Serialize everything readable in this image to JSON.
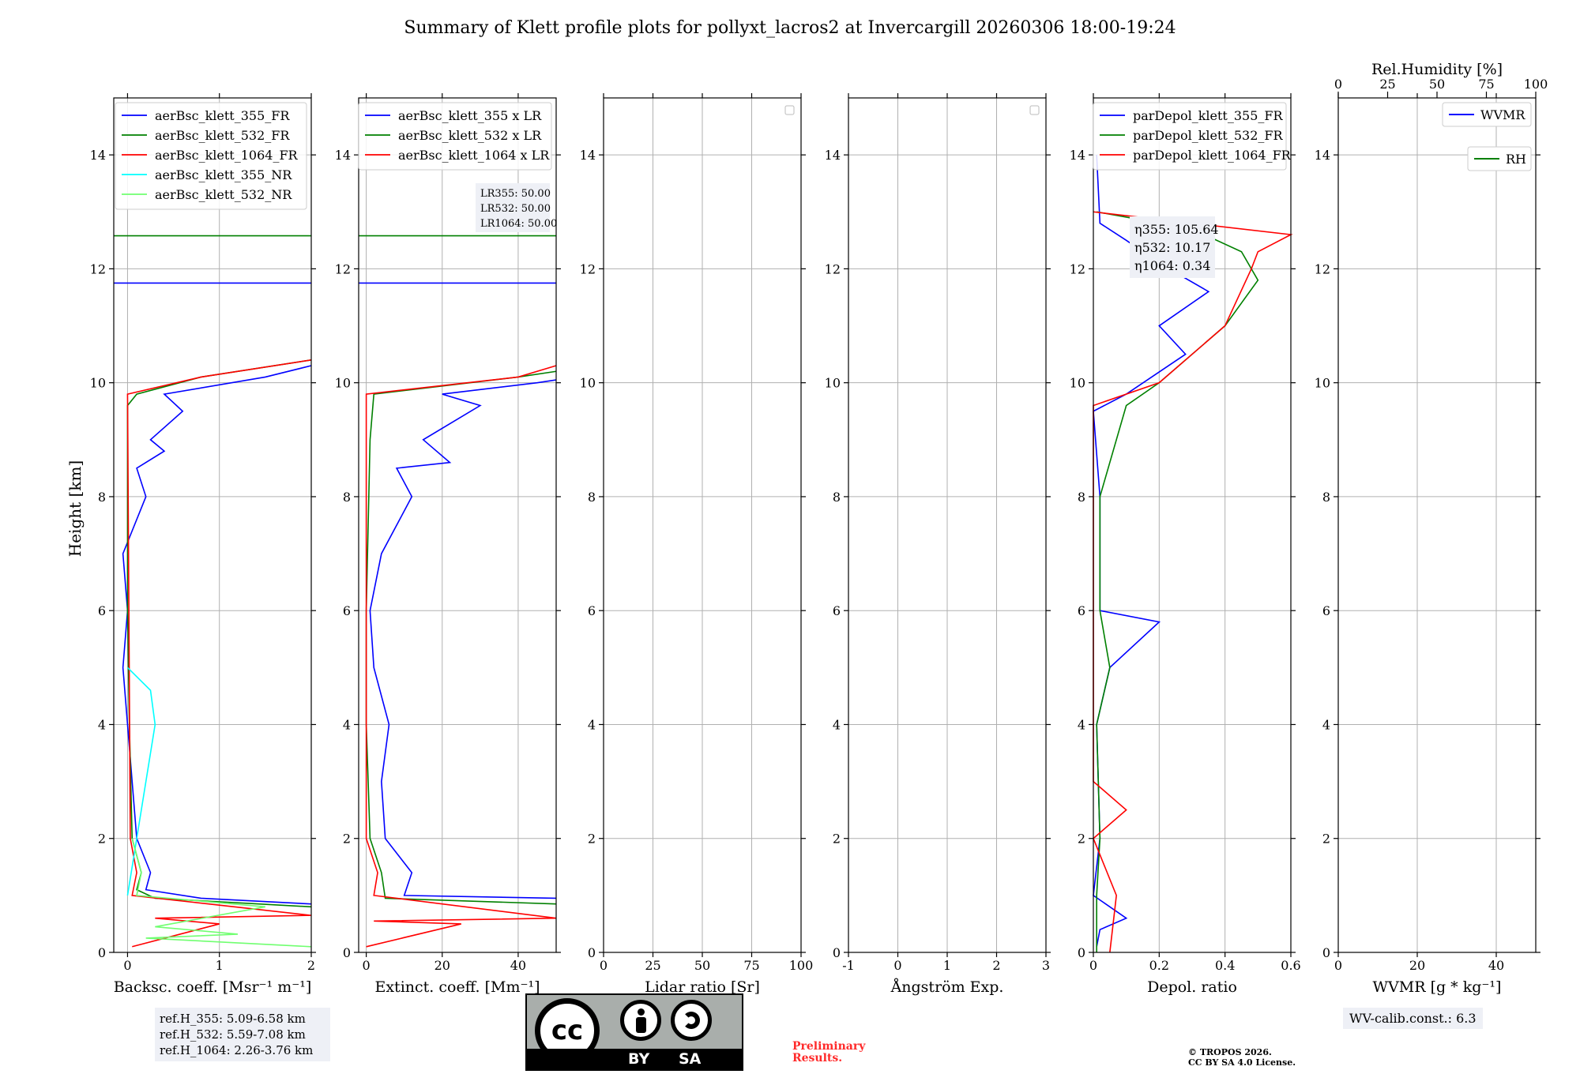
{
  "title": "Summary of Klett profile plots for pollyxt_lacros2 at Invercargill 20260306 18:00-19:24",
  "colors": {
    "blue": "#0000ff",
    "green": "#008000",
    "red": "#ff0000",
    "cyan": "#00ffff",
    "lightgreen": "#70ff70",
    "grid": "#b0b0b0",
    "boxbg": "#eef0f6"
  },
  "chart_data": [
    {
      "type": "line",
      "ylabel": "Height [km]",
      "xlabel": "Backsc. coeff. [Msr⁻¹ m⁻¹]",
      "xlim": [
        -0.15,
        2
      ],
      "ylim": [
        0,
        15
      ],
      "xticks": [
        0,
        1,
        2
      ],
      "yticks": [
        0,
        2,
        4,
        6,
        8,
        10,
        12,
        14
      ],
      "legend": {
        "position": "top-right",
        "entries": [
          "aerBsc_klett_355_FR",
          "aerBsc_klett_532_FR",
          "aerBsc_klett_1064_FR",
          "aerBsc_klett_355_NR",
          "aerBsc_klett_532_NR"
        ]
      },
      "series": [
        {
          "name": "aerBsc_klett_355_FR",
          "color": "blue",
          "points": [
            [
              2,
              0.85
            ],
            [
              0.8,
              0.95
            ],
            [
              0.2,
              1.1
            ],
            [
              0.25,
              1.4
            ],
            [
              0.1,
              2.0
            ],
            [
              0.05,
              3.0
            ],
            [
              0.0,
              4.0
            ],
            [
              -0.05,
              5.0
            ],
            [
              0.0,
              6.0
            ],
            [
              -0.05,
              7.0
            ],
            [
              0.2,
              8.0
            ],
            [
              0.1,
              8.5
            ],
            [
              0.4,
              8.8
            ],
            [
              0.25,
              9.0
            ],
            [
              0.6,
              9.5
            ],
            [
              0.4,
              9.8
            ],
            [
              1.5,
              10.1
            ],
            [
              2,
              10.3
            ]
          ]
        },
        {
          "name": "aerBsc_klett_532_FR",
          "color": "green",
          "points": [
            [
              2,
              0.8
            ],
            [
              0.3,
              0.95
            ],
            [
              0.1,
              1.1
            ],
            [
              0.15,
              1.4
            ],
            [
              0.05,
              2.0
            ],
            [
              0.02,
              4.0
            ],
            [
              0.0,
              6.0
            ],
            [
              0.0,
              9.6
            ],
            [
              0.1,
              9.8
            ],
            [
              0.8,
              10.1
            ],
            [
              2,
              10.4
            ]
          ]
        },
        {
          "name": "aerBsc_klett_1064_FR",
          "color": "red",
          "points": [
            [
              0.05,
              0.1
            ],
            [
              1.0,
              0.5
            ],
            [
              0.3,
              0.6
            ],
            [
              2,
              0.65
            ],
            [
              0.05,
              1.0
            ],
            [
              0.1,
              1.4
            ],
            [
              0.03,
              2.0
            ],
            [
              0.0,
              9.8
            ],
            [
              0.8,
              10.1
            ],
            [
              2,
              10.4
            ]
          ]
        },
        {
          "name": "aerBsc_klett_355_NR",
          "color": "cyan",
          "points": [
            [
              0.0,
              1.0
            ],
            [
              0.1,
              2.0
            ],
            [
              0.2,
              3.0
            ],
            [
              0.3,
              4.0
            ],
            [
              0.25,
              4.6
            ],
            [
              0.0,
              5.0
            ]
          ]
        },
        {
          "name": "aerBsc_klett_532_NR",
          "color": "lightgreen",
          "points": [
            [
              2,
              0.1
            ],
            [
              0.2,
              0.25
            ],
            [
              1.2,
              0.32
            ],
            [
              0.3,
              0.45
            ],
            [
              1.5,
              0.8
            ],
            [
              0.1,
              1.0
            ],
            [
              0.15,
              1.4
            ],
            [
              0.05,
              2.0
            ]
          ]
        }
      ],
      "hlines": [
        {
          "y": 12.58,
          "color": "green"
        },
        {
          "y": 11.75,
          "color": "blue"
        }
      ],
      "annotations": [
        "ref.H_355: 5.09-6.58 km",
        "ref.H_532: 5.59-7.08 km",
        "ref.H_1064: 2.26-3.76 km"
      ]
    },
    {
      "type": "line",
      "xlabel": "Extinct. coeff. [Mm⁻¹]",
      "xlim": [
        -2,
        50
      ],
      "ylim": [
        0,
        15
      ],
      "xticks": [
        0,
        20,
        40
      ],
      "legend": {
        "position": "top-right",
        "entries": [
          "aerBsc_klett_355 x LR",
          "aerBsc_klett_532 x LR",
          "aerBsc_klett_1064 x LR"
        ]
      },
      "series": [
        {
          "name": "aerBsc_klett_355 x LR",
          "color": "blue",
          "points": [
            [
              50,
              0.95
            ],
            [
              10,
              1.0
            ],
            [
              12,
              1.4
            ],
            [
              5,
              2.0
            ],
            [
              4,
              3.0
            ],
            [
              6,
              4.0
            ],
            [
              2,
              5.0
            ],
            [
              1,
              6.0
            ],
            [
              4,
              7.0
            ],
            [
              12,
              8.0
            ],
            [
              8,
              8.5
            ],
            [
              22,
              8.6
            ],
            [
              15,
              9.0
            ],
            [
              30,
              9.6
            ],
            [
              20,
              9.8
            ],
            [
              45,
              10.0
            ],
            [
              50,
              10.05
            ]
          ]
        },
        {
          "name": "aerBsc_klett_532 x LR",
          "color": "green",
          "points": [
            [
              50,
              0.85
            ],
            [
              5,
              0.95
            ],
            [
              4,
              1.4
            ],
            [
              1,
              2.0
            ],
            [
              0,
              4.0
            ],
            [
              0,
              6.0
            ],
            [
              1,
              9.0
            ],
            [
              2,
              9.8
            ],
            [
              40,
              10.1
            ],
            [
              50,
              10.2
            ]
          ]
        },
        {
          "name": "aerBsc_klett_1064 x LR",
          "color": "red",
          "points": [
            [
              0,
              0.1
            ],
            [
              25,
              0.5
            ],
            [
              2,
              0.55
            ],
            [
              50,
              0.6
            ],
            [
              2,
              1.0
            ],
            [
              3,
              1.4
            ],
            [
              0,
              2.0
            ],
            [
              0,
              9.8
            ],
            [
              40,
              10.1
            ],
            [
              50,
              10.3
            ]
          ]
        }
      ],
      "hlines": [
        {
          "y": 12.58,
          "color": "green"
        },
        {
          "y": 11.75,
          "color": "blue"
        }
      ],
      "annotations": [
        "LR355: 50.00",
        "LR532: 50.00",
        "LR1064: 50.00"
      ]
    },
    {
      "type": "line",
      "xlabel": "Lidar ratio [Sr]",
      "xlim": [
        0,
        100
      ],
      "ylim": [
        0,
        15
      ],
      "xticks": [
        0,
        25,
        50,
        75,
        100
      ],
      "series": []
    },
    {
      "type": "line",
      "xlabel": "Ångström Exp.",
      "xlim": [
        -1,
        3
      ],
      "ylim": [
        0,
        15
      ],
      "xticks": [
        -1,
        0,
        1,
        2,
        3
      ],
      "series": []
    },
    {
      "type": "line",
      "xlabel": "Depol. ratio",
      "xlim": [
        0,
        0.6
      ],
      "ylim": [
        0,
        15
      ],
      "xticks": [
        0.0,
        0.2,
        0.4,
        0.6
      ],
      "legend": {
        "position": "top-right",
        "entries": [
          "parDepol_klett_355_FR",
          "parDepol_klett_532_FR",
          "parDepol_klett_1064_FR"
        ]
      },
      "series": [
        {
          "name": "parDepol_klett_355_FR",
          "color": "blue",
          "points": [
            [
              0.01,
              0.1
            ],
            [
              0.02,
              0.4
            ],
            [
              0.1,
              0.6
            ],
            [
              0.0,
              1.0
            ],
            [
              0.02,
              2.0
            ],
            [
              0.01,
              4.0
            ],
            [
              0.05,
              5.0
            ],
            [
              0.2,
              5.8
            ],
            [
              0.02,
              6.0
            ],
            [
              0.02,
              8.0
            ],
            [
              0.0,
              9.5
            ],
            [
              0.1,
              9.8
            ],
            [
              0.28,
              10.5
            ],
            [
              0.2,
              11.0
            ],
            [
              0.35,
              11.6
            ],
            [
              0.2,
              12.1
            ],
            [
              0.1,
              12.5
            ],
            [
              0.02,
              12.8
            ],
            [
              0.01,
              14.0
            ]
          ]
        },
        {
          "name": "parDepol_klett_532_FR",
          "color": "green",
          "points": [
            [
              0.01,
              0.0
            ],
            [
              0.01,
              1.0
            ],
            [
              0.02,
              2.0
            ],
            [
              0.01,
              4.0
            ],
            [
              0.05,
              5.0
            ],
            [
              0.02,
              6.0
            ],
            [
              0.02,
              8.0
            ],
            [
              0.1,
              9.6
            ],
            [
              0.2,
              10.0
            ],
            [
              0.4,
              11.0
            ],
            [
              0.5,
              11.8
            ],
            [
              0.45,
              12.3
            ],
            [
              0.3,
              12.7
            ],
            [
              0.01,
              13.0
            ]
          ]
        },
        {
          "name": "parDepol_klett_1064_FR",
          "color": "red",
          "points": [
            [
              0.05,
              0.0
            ],
            [
              0.07,
              1.0
            ],
            [
              0.0,
              2.0
            ],
            [
              0.1,
              2.5
            ],
            [
              0.0,
              3.0
            ],
            [
              0.0,
              9.6
            ],
            [
              0.2,
              10.0
            ],
            [
              0.4,
              11.0
            ],
            [
              0.48,
              12.0
            ],
            [
              0.5,
              12.3
            ],
            [
              0.6,
              12.6
            ],
            [
              0.3,
              12.8
            ],
            [
              0.0,
              13.0
            ]
          ]
        }
      ],
      "annotations": [
        "η355: 105.64",
        "η532: 10.17",
        "η1064: 0.34"
      ]
    },
    {
      "type": "line",
      "xlabel": "WVMR [g * kg⁻¹]",
      "xlim": [
        0,
        50
      ],
      "ylim": [
        0,
        15
      ],
      "xticks": [
        0,
        20,
        40
      ],
      "top_xlabel": "Rel.Humidity [%]",
      "top_xticks": [
        0,
        25,
        50,
        75,
        100
      ],
      "legend": {
        "position": "top-right",
        "entries": [
          "WVMR",
          "RH"
        ]
      },
      "series": [],
      "annotations": [
        "WV-calib.const.: 6.3"
      ]
    }
  ],
  "footer": {
    "preliminary_line1": "Preliminary",
    "preliminary_line2": "Results.",
    "copyright_line1": "© TROPOS 2026.",
    "copyright_line2": "CC BY SA 4.0 License.",
    "cc_by": "BY",
    "cc_sa": "SA",
    "cc_text": "cc"
  }
}
